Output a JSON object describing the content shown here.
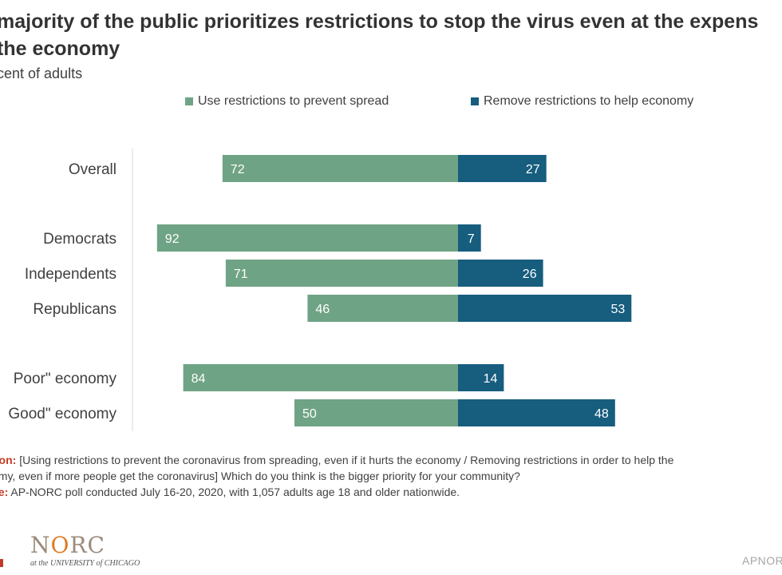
{
  "header": {
    "title_line1": "majority of the public prioritizes restrictions to stop the virus even at the expens",
    "title_line2": "the economy",
    "subtitle": "cent of adults"
  },
  "legend": {
    "item1": "Use restrictions to prevent spread",
    "item2": "Remove restrictions to help economy"
  },
  "chart_data": {
    "type": "bar",
    "orientation": "horizontal-diverging",
    "categories": [
      "Overall",
      "Democrats",
      "Independents",
      "Republicans",
      "Poor\" economy",
      "Good\" economy"
    ],
    "series": [
      {
        "name": "Use restrictions to prevent spread",
        "color": "#6fa385",
        "values": [
          72,
          92,
          71,
          46,
          84,
          50
        ]
      },
      {
        "name": "Remove restrictions to help economy",
        "color": "#165d7e",
        "values": [
          27,
          7,
          26,
          53,
          14,
          48
        ]
      }
    ],
    "grid": false,
    "legend_position": "top"
  },
  "notes": {
    "question_label": "tion:",
    "question_line1": " [Using restrictions to prevent the coronavirus from spreading, even if it hurts the economy / Removing restrictions in order to help the",
    "question_line2": "omy, even if more people get the coronavirus] Which do you think is the bigger priority for your community?",
    "source_label": "ce:",
    "source_text": " AP-NORC poll conducted July 16-20, 2020, with 1,057 adults age 18 and older nationwide."
  },
  "footer": {
    "logo_n": "N",
    "logo_o": "O",
    "logo_rc": "RC",
    "logo_sub": "at the UNIVERSITY of CHICAGO",
    "right_text": "APNOR"
  }
}
